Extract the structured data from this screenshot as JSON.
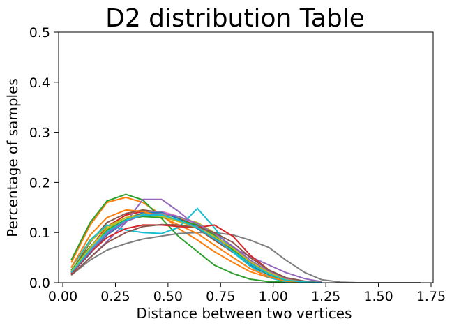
{
  "chart_data": {
    "type": "line",
    "title": "D2 distribution Table",
    "xlabel": "Distance between two vertices",
    "ylabel": "Percentage of samples",
    "xlim": [
      -0.02,
      1.76
    ],
    "ylim": [
      0,
      0.5
    ],
    "xticks": [
      "0.00",
      "0.25",
      "0.50",
      "0.75",
      "1.00",
      "1.25",
      "1.50",
      "1.75"
    ],
    "xtick_values": [
      0,
      0.25,
      0.5,
      0.75,
      1.0,
      1.25,
      1.5,
      1.75
    ],
    "yticks": [
      "0.0",
      "0.1",
      "0.2",
      "0.3",
      "0.4",
      "0.5"
    ],
    "ytick_values": [
      0,
      0.1,
      0.2,
      0.3,
      0.4,
      0.5
    ],
    "grid": false,
    "legend": "none",
    "series": [
      {
        "color": "#1f77b4",
        "x": [
          0.04,
          0.13,
          0.21,
          0.3,
          0.38,
          0.47,
          0.55,
          0.64,
          0.72,
          0.81,
          0.89,
          0.98,
          1.06,
          1.15,
          1.23
        ],
        "y": [
          0.02,
          0.06,
          0.095,
          0.122,
          0.136,
          0.138,
          0.13,
          0.112,
          0.09,
          0.06,
          0.035,
          0.015,
          0.005,
          0.001,
          0.0
        ]
      },
      {
        "color": "#ff7f0e",
        "x": [
          0.04,
          0.13,
          0.21,
          0.3,
          0.38,
          0.47,
          0.55,
          0.64,
          0.72,
          0.81,
          0.89,
          0.98,
          1.06,
          1.15,
          1.23
        ],
        "y": [
          0.04,
          0.115,
          0.16,
          0.17,
          0.16,
          0.135,
          0.108,
          0.085,
          0.062,
          0.04,
          0.022,
          0.01,
          0.003,
          0.001,
          0.0
        ]
      },
      {
        "color": "#2ca02c",
        "x": [
          0.04,
          0.13,
          0.21,
          0.3,
          0.38,
          0.47,
          0.55,
          0.64,
          0.72,
          0.81,
          0.89,
          0.98,
          1.06,
          1.15,
          1.23
        ],
        "y": [
          0.045,
          0.12,
          0.163,
          0.176,
          0.165,
          0.128,
          0.092,
          0.062,
          0.035,
          0.018,
          0.007,
          0.002,
          0.001,
          0.0,
          0.0
        ]
      },
      {
        "color": "#d62728",
        "x": [
          0.04,
          0.13,
          0.21,
          0.3,
          0.38,
          0.47,
          0.55,
          0.64,
          0.72,
          0.81,
          0.89,
          0.98,
          1.06,
          1.15,
          1.23
        ],
        "y": [
          0.02,
          0.07,
          0.112,
          0.135,
          0.142,
          0.14,
          0.13,
          0.113,
          0.09,
          0.065,
          0.04,
          0.018,
          0.006,
          0.001,
          0.0
        ]
      },
      {
        "color": "#9467bd",
        "x": [
          0.04,
          0.13,
          0.21,
          0.3,
          0.38,
          0.47,
          0.55,
          0.64,
          0.72,
          0.81,
          0.89,
          0.98,
          1.06,
          1.15,
          1.23
        ],
        "y": [
          0.015,
          0.05,
          0.082,
          0.12,
          0.166,
          0.166,
          0.142,
          0.112,
          0.088,
          0.07,
          0.052,
          0.035,
          0.02,
          0.008,
          0.002
        ]
      },
      {
        "color": "#8c564b",
        "x": [
          0.04,
          0.13,
          0.21,
          0.3,
          0.38,
          0.47,
          0.55,
          0.64,
          0.72,
          0.81,
          0.89,
          0.98,
          1.06,
          1.15,
          1.23
        ],
        "y": [
          0.022,
          0.08,
          0.12,
          0.138,
          0.145,
          0.14,
          0.128,
          0.108,
          0.085,
          0.06,
          0.038,
          0.02,
          0.008,
          0.002,
          0.0
        ]
      },
      {
        "color": "#e377c2",
        "x": [
          0.04,
          0.13,
          0.21,
          0.3,
          0.38,
          0.47,
          0.55,
          0.64,
          0.72,
          0.81,
          0.89,
          0.98,
          1.06,
          1.15,
          1.23
        ],
        "y": [
          0.025,
          0.068,
          0.1,
          0.125,
          0.14,
          0.142,
          0.132,
          0.115,
          0.092,
          0.066,
          0.042,
          0.02,
          0.007,
          0.001,
          0.0
        ]
      },
      {
        "color": "#7f7f7f",
        "x": [
          0.04,
          0.13,
          0.21,
          0.3,
          0.38,
          0.47,
          0.55,
          0.64,
          0.72,
          0.81,
          0.89,
          0.98,
          1.06,
          1.15,
          1.23,
          1.32,
          1.4,
          1.49,
          1.57,
          1.66,
          1.7
        ],
        "y": [
          0.015,
          0.045,
          0.065,
          0.078,
          0.087,
          0.093,
          0.098,
          0.1,
          0.1,
          0.095,
          0.085,
          0.07,
          0.045,
          0.02,
          0.006,
          0.001,
          0.0,
          0.0,
          0.0,
          0.0,
          0.0
        ]
      },
      {
        "color": "#bcbd22",
        "x": [
          0.04,
          0.13,
          0.21,
          0.3,
          0.38,
          0.47,
          0.55,
          0.64,
          0.72,
          0.81,
          0.89,
          0.98,
          1.06,
          1.15,
          1.23
        ],
        "y": [
          0.03,
          0.082,
          0.112,
          0.13,
          0.138,
          0.136,
          0.13,
          0.12,
          0.1,
          0.07,
          0.043,
          0.02,
          0.006,
          0.001,
          0.0
        ]
      },
      {
        "color": "#17becf",
        "x": [
          0.04,
          0.13,
          0.21,
          0.3,
          0.38,
          0.47,
          0.55,
          0.64,
          0.72,
          0.81,
          0.89,
          0.98,
          1.06,
          1.15,
          1.23
        ],
        "y": [
          0.03,
          0.085,
          0.115,
          0.105,
          0.1,
          0.098,
          0.11,
          0.148,
          0.11,
          0.06,
          0.033,
          0.01,
          0.002,
          0.0,
          0.0
        ]
      },
      {
        "color": "#1f77b4",
        "x": [
          0.04,
          0.13,
          0.21,
          0.3,
          0.38,
          0.47,
          0.55,
          0.64,
          0.72,
          0.81,
          0.89,
          0.98,
          1.06,
          1.15,
          1.23
        ],
        "y": [
          0.018,
          0.058,
          0.098,
          0.125,
          0.14,
          0.14,
          0.128,
          0.108,
          0.09,
          0.07,
          0.045,
          0.022,
          0.008,
          0.002,
          0.0
        ]
      },
      {
        "color": "#ff7f0e",
        "x": [
          0.04,
          0.13,
          0.21,
          0.3,
          0.38,
          0.47,
          0.55,
          0.64,
          0.72,
          0.81,
          0.89,
          0.98,
          1.06,
          1.15,
          1.23
        ],
        "y": [
          0.03,
          0.095,
          0.13,
          0.145,
          0.142,
          0.132,
          0.115,
          0.098,
          0.075,
          0.05,
          0.028,
          0.012,
          0.003,
          0.001,
          0.0
        ]
      },
      {
        "color": "#2ca02c",
        "x": [
          0.04,
          0.13,
          0.21,
          0.3,
          0.38,
          0.47,
          0.55,
          0.64,
          0.72,
          0.81,
          0.89,
          0.98,
          1.06,
          1.15,
          1.23
        ],
        "y": [
          0.025,
          0.072,
          0.105,
          0.126,
          0.132,
          0.13,
          0.125,
          0.115,
          0.095,
          0.065,
          0.038,
          0.016,
          0.005,
          0.001,
          0.0
        ]
      },
      {
        "color": "#d62728",
        "x": [
          0.04,
          0.13,
          0.21,
          0.3,
          0.38,
          0.47,
          0.55,
          0.64,
          0.72,
          0.81,
          0.89,
          0.98,
          1.06,
          1.15,
          1.23
        ],
        "y": [
          0.018,
          0.06,
          0.09,
          0.108,
          0.115,
          0.115,
          0.112,
          0.11,
          0.115,
          0.092,
          0.055,
          0.025,
          0.008,
          0.002,
          0.0
        ]
      },
      {
        "color": "#9467bd",
        "x": [
          0.04,
          0.13,
          0.21,
          0.3,
          0.38,
          0.47,
          0.55,
          0.64,
          0.72,
          0.81,
          0.89,
          0.98,
          1.06,
          1.15,
          1.23
        ],
        "y": [
          0.02,
          0.062,
          0.098,
          0.122,
          0.135,
          0.138,
          0.132,
          0.118,
          0.098,
          0.072,
          0.045,
          0.022,
          0.008,
          0.002,
          0.0
        ]
      },
      {
        "color": "#8c564b",
        "x": [
          0.04,
          0.13,
          0.21,
          0.3,
          0.38,
          0.47,
          0.55,
          0.64,
          0.72,
          0.81,
          0.89,
          0.98,
          1.06,
          1.15,
          1.23
        ],
        "y": [
          0.015,
          0.05,
          0.08,
          0.1,
          0.112,
          0.116,
          0.115,
          0.11,
          0.1,
          0.08,
          0.05,
          0.025,
          0.01,
          0.003,
          0.0
        ]
      },
      {
        "color": "#bcbd22",
        "x": [
          0.04,
          0.13,
          0.21,
          0.3,
          0.38,
          0.47,
          0.55,
          0.64,
          0.72,
          0.81,
          0.89,
          0.98,
          1.06,
          1.15,
          1.23
        ],
        "y": [
          0.022,
          0.07,
          0.108,
          0.13,
          0.135,
          0.132,
          0.122,
          0.11,
          0.092,
          0.068,
          0.042,
          0.02,
          0.006,
          0.001,
          0.0
        ]
      },
      {
        "color": "#17becf",
        "x": [
          0.04,
          0.13,
          0.21,
          0.3,
          0.38,
          0.47,
          0.55,
          0.64,
          0.72,
          0.81,
          0.89,
          0.98,
          1.06,
          1.15,
          1.23
        ],
        "y": [
          0.02,
          0.065,
          0.102,
          0.125,
          0.135,
          0.135,
          0.125,
          0.11,
          0.088,
          0.062,
          0.038,
          0.017,
          0.005,
          0.001,
          0.0
        ]
      }
    ]
  }
}
